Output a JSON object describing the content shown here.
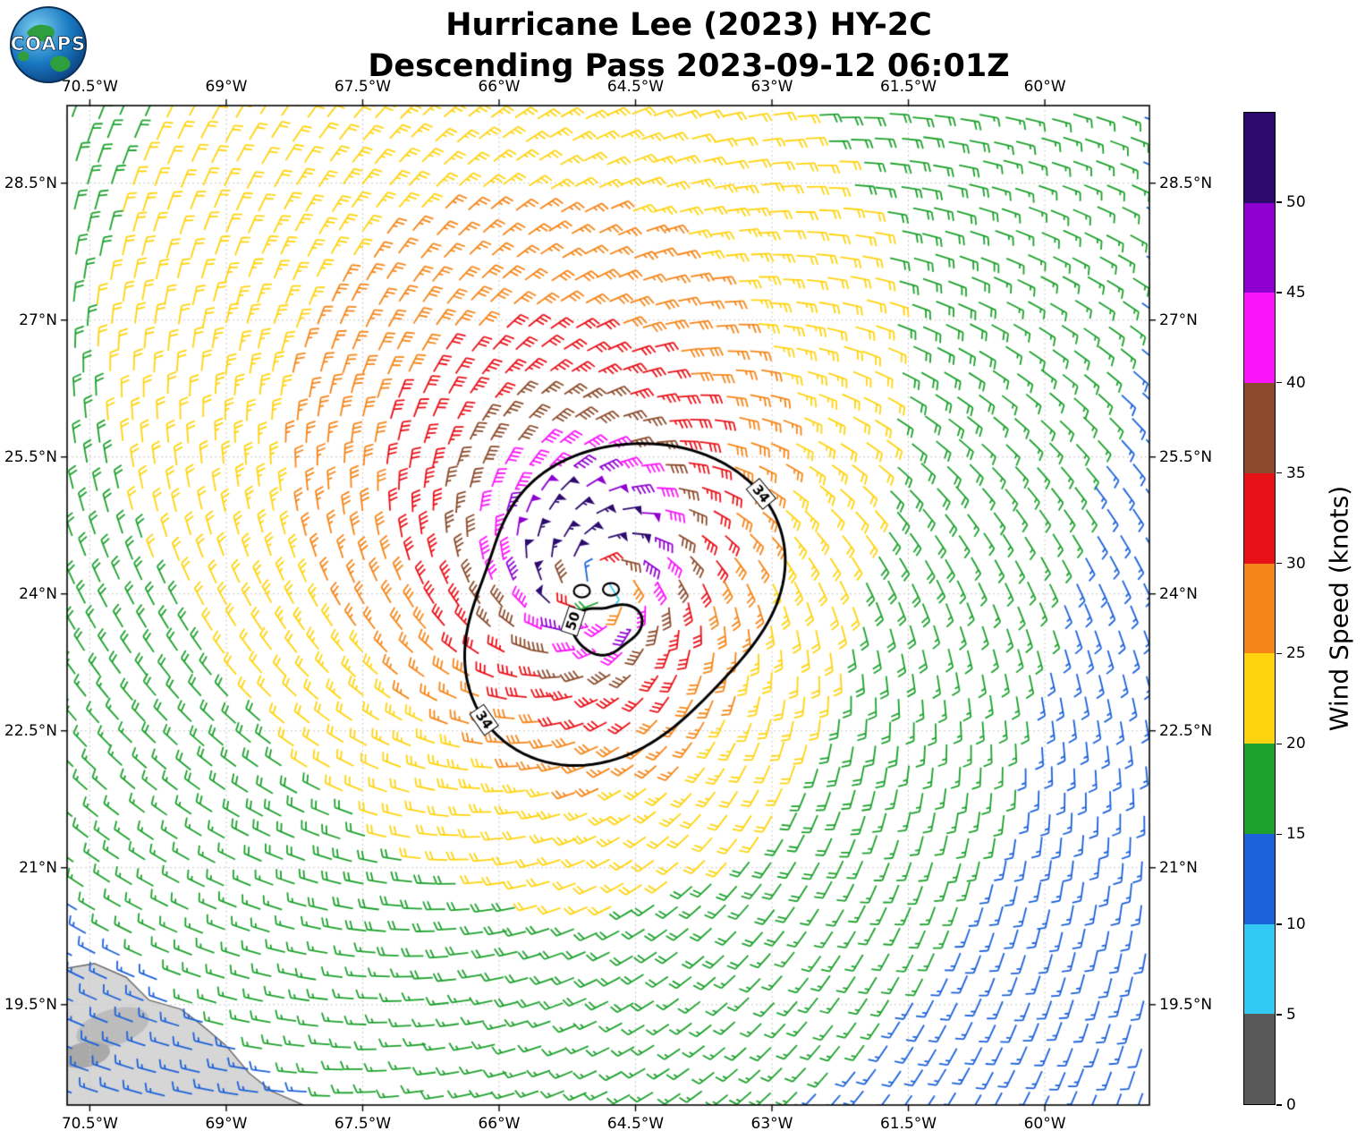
{
  "header": {
    "title_line1": "Hurricane Lee (2023) HY-2C",
    "title_line2": "Descending Pass 2023-09-12 06:01Z"
  },
  "logo": {
    "text": "COAPS"
  },
  "chart_data": {
    "type": "wind_barb_map",
    "title": "Hurricane Lee (2023) HY-2C",
    "subtitle": "Descending Pass 2023-09-12 06:01Z",
    "x_tick_labels": [
      "70.5°W",
      "69°W",
      "67.5°W",
      "66°W",
      "64.5°W",
      "63°W",
      "61.5°W",
      "60°W"
    ],
    "x_ticks_deg_w": [
      70.5,
      69,
      67.5,
      66,
      64.5,
      63,
      61.5,
      60
    ],
    "y_tick_labels": [
      "28.5°N",
      "27°N",
      "25.5°N",
      "24°N",
      "22.5°N",
      "21°N",
      "19.5°N"
    ],
    "y_ticks_deg_n": [
      28.5,
      27,
      25.5,
      24,
      22.5,
      21,
      19.5
    ],
    "lon_range_deg_w": [
      70.75,
      58.85
    ],
    "lat_range_deg_n": [
      18.4,
      29.35
    ],
    "grid": "dashed",
    "colorbar": {
      "label": "Wind Speed (knots)",
      "tick_labels": [
        "0",
        "5",
        "10",
        "15",
        "20",
        "25",
        "30",
        "35",
        "40",
        "45",
        "50"
      ],
      "ticks": [
        0,
        5,
        10,
        15,
        20,
        25,
        30,
        35,
        40,
        45,
        50
      ],
      "max_value": 55,
      "bin_width_knots": 5,
      "colors": [
        "#595959",
        "#33c9f5",
        "#1b61d9",
        "#1ca12c",
        "#ffd30f",
        "#f58518",
        "#e81118",
        "#8b4a2b",
        "#fa14fa",
        "#8f00d0",
        "#2d0a6e"
      ]
    },
    "wind_field_model": {
      "center_lon_deg_w": 64.9,
      "center_lat_deg_n": 24.1,
      "vmax_kt": 55,
      "rmax_deg": 0.55,
      "decay_exponent": 0.5,
      "inflow_angle_deg": 25,
      "rotation": "counterclockwise",
      "asym_amp1": 0.2,
      "asym_phase1": 0.6,
      "asym_amp2": 0.1,
      "asym_phase2": 2.0
    },
    "contours": {
      "r34_label": "34",
      "r50_label": "50",
      "r34_center_lon_lat": [
        64.9,
        24.1
      ],
      "r34_mean_radius_deg": 1.62,
      "r50_center_lon_lat": [
        64.82,
        23.62
      ],
      "r50_mean_radius_deg": 0.3
    },
    "land_polygon_lon_lat": [
      [
        70.75,
        19.9
      ],
      [
        70.45,
        19.95
      ],
      [
        70.1,
        19.8
      ],
      [
        69.85,
        19.55
      ],
      [
        69.5,
        19.45
      ],
      [
        69.3,
        19.3
      ],
      [
        69.0,
        19.05
      ],
      [
        68.75,
        18.75
      ],
      [
        68.5,
        18.55
      ],
      [
        68.15,
        18.4
      ],
      [
        70.75,
        18.4
      ]
    ]
  }
}
